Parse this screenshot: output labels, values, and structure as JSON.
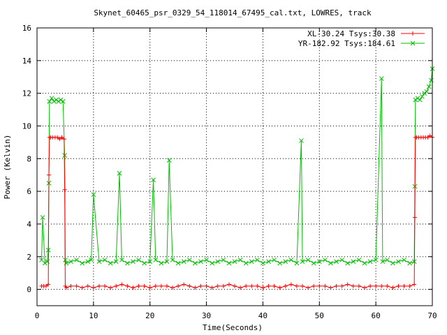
{
  "chart_data": {
    "type": "line",
    "title": "Skynet_60465_psr_0329_54_118014_67495_cal.txt, LOWRES, track",
    "xlabel": "Time(Seconds)",
    "ylabel": "Power (Kelvin)",
    "xlim": [
      0,
      70
    ],
    "ylim": [
      -1,
      16
    ],
    "xticks": [
      0,
      10,
      20,
      30,
      40,
      50,
      60,
      70
    ],
    "yticks": [
      0,
      2,
      4,
      6,
      8,
      10,
      12,
      14,
      16
    ],
    "grid": true,
    "legend_position": "top-right",
    "series": [
      {
        "name": "XL-30.24 Tsys:30.38",
        "color": "#ff0000",
        "marker": "plus",
        "x": [
          0.8,
          1.2,
          1.6,
          2.0,
          2.1,
          2.2,
          2.4,
          2.8,
          3.2,
          3.6,
          4.0,
          4.4,
          4.8,
          4.9,
          5.0,
          5.2,
          6,
          7,
          8,
          9,
          10,
          11,
          12,
          13,
          14,
          15,
          16,
          17,
          18,
          19,
          20,
          21,
          22,
          23,
          24,
          25,
          26,
          27,
          28,
          29,
          30,
          31,
          32,
          33,
          34,
          35,
          36,
          37,
          38,
          39,
          40,
          41,
          42,
          43,
          44,
          45,
          46,
          47,
          48,
          49,
          50,
          51,
          52,
          53,
          54,
          55,
          56,
          57,
          58,
          59,
          60,
          61,
          62,
          63,
          64,
          65,
          66,
          66.8,
          66.9,
          67.0,
          67.2,
          67.6,
          68.0,
          68.4,
          68.8,
          69.2,
          69.6,
          70
        ],
        "y": [
          0.2,
          0.2,
          0.2,
          0.3,
          7.0,
          9.3,
          9.3,
          9.3,
          9.3,
          9.3,
          9.2,
          9.3,
          9.2,
          6.1,
          0.2,
          0.1,
          0.2,
          0.2,
          0.1,
          0.2,
          0.1,
          0.2,
          0.2,
          0.1,
          0.2,
          0.3,
          0.2,
          0.1,
          0.2,
          0.2,
          0.1,
          0.2,
          0.2,
          0.2,
          0.1,
          0.2,
          0.3,
          0.2,
          0.1,
          0.2,
          0.2,
          0.1,
          0.2,
          0.2,
          0.3,
          0.2,
          0.1,
          0.2,
          0.2,
          0.2,
          0.1,
          0.2,
          0.2,
          0.1,
          0.2,
          0.3,
          0.2,
          0.2,
          0.1,
          0.2,
          0.2,
          0.2,
          0.1,
          0.2,
          0.2,
          0.3,
          0.2,
          0.2,
          0.1,
          0.2,
          0.2,
          0.2,
          0.2,
          0.1,
          0.2,
          0.2,
          0.2,
          0.3,
          4.4,
          9.3,
          9.3,
          9.3,
          9.3,
          9.3,
          9.3,
          9.3,
          9.4,
          9.3
        ]
      },
      {
        "name": "YR-182.92 Tsys:184.61",
        "color": "#00c000",
        "marker": "cross",
        "x": [
          0.8,
          1.0,
          1.4,
          1.8,
          2.0,
          2.1,
          2.2,
          2.6,
          3.0,
          3.4,
          3.8,
          4.2,
          4.6,
          4.9,
          5.0,
          5.2,
          6,
          7,
          8,
          9,
          9.6,
          10,
          11,
          12,
          13,
          14,
          14.6,
          15,
          16,
          17,
          18,
          19,
          20,
          20.6,
          21,
          22,
          23,
          23.4,
          24,
          25,
          26,
          27,
          28,
          29,
          30,
          31,
          32,
          33,
          34,
          35,
          36,
          37,
          38,
          39,
          40,
          41,
          42,
          43,
          44,
          45,
          46,
          46.8,
          47,
          48,
          49,
          50,
          51,
          52,
          53,
          54,
          55,
          56,
          57,
          58,
          59,
          60,
          61,
          61.2,
          62,
          63,
          64,
          65,
          66,
          66.8,
          66.9,
          67.0,
          67.4,
          67.8,
          68.2,
          68.6,
          69.0,
          69.4,
          69.8,
          70
        ],
        "y": [
          1.8,
          4.4,
          1.6,
          1.7,
          2.4,
          6.5,
          11.5,
          11.7,
          11.5,
          11.6,
          11.5,
          11.6,
          11.5,
          8.2,
          1.8,
          1.6,
          1.7,
          1.8,
          1.6,
          1.7,
          1.8,
          5.8,
          1.7,
          1.8,
          1.6,
          1.7,
          7.1,
          1.8,
          1.6,
          1.7,
          1.8,
          1.6,
          1.7,
          6.7,
          1.8,
          1.6,
          1.7,
          7.9,
          1.8,
          1.6,
          1.7,
          1.8,
          1.6,
          1.7,
          1.8,
          1.6,
          1.7,
          1.8,
          1.6,
          1.7,
          1.8,
          1.6,
          1.7,
          1.8,
          1.6,
          1.7,
          1.8,
          1.6,
          1.7,
          1.8,
          1.6,
          9.1,
          1.7,
          1.8,
          1.6,
          1.7,
          1.8,
          1.6,
          1.7,
          1.8,
          1.6,
          1.7,
          1.8,
          1.6,
          1.7,
          1.8,
          12.9,
          1.7,
          1.8,
          1.6,
          1.7,
          1.8,
          1.6,
          1.7,
          6.3,
          11.6,
          11.7,
          11.6,
          11.8,
          12.0,
          12.1,
          12.4,
          12.8,
          13.5
        ]
      }
    ]
  }
}
